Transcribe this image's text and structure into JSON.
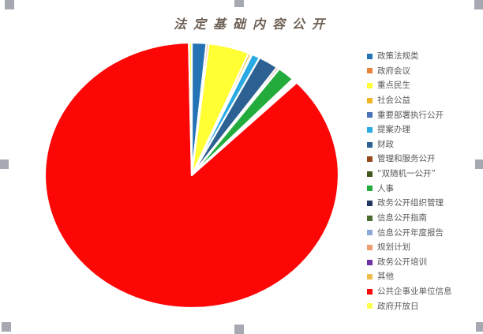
{
  "window": {
    "background": "#ffffff",
    "selection_handle_color": "#a6a9b2"
  },
  "chart_data": {
    "type": "pie",
    "title": "法定基础内容公开",
    "legend_position": "right",
    "start_angle_deg": 0,
    "direction": "clockwise",
    "grid": false,
    "title_color": "#6e6156",
    "legend_text_color": "#595959",
    "slice_border_color": "#ffffff",
    "categories": [
      "政策法规类",
      "政府会议",
      "重点民生",
      "社会公益",
      "重要部署执行公开",
      "提案办理",
      "财政",
      "管理和服务公开",
      "“双随机一公开”",
      "人事",
      "政务公开组织管理",
      "信息公开指南",
      "信息公开年度报告",
      "规划计划",
      "政务公开培训",
      "其他",
      "公共企事业单位信息",
      "政府开放日"
    ],
    "values_percent": [
      1.6,
      0.25,
      4.5,
      0.3,
      0.1,
      0.9,
      2.2,
      0.25,
      0.08,
      1.9,
      0.08,
      0.08,
      0.08,
      0.18,
      0.08,
      0.1,
      87.0,
      0.32
    ],
    "colors": [
      "#2573B5",
      "#E8823C",
      "#FFFF33",
      "#EFB41F",
      "#4A72B8",
      "#29AAE3",
      "#2D6093",
      "#99481E",
      "#41591D",
      "#23AC3C",
      "#1F3864",
      "#4C6B2F",
      "#8BA9D9",
      "#EC9D72",
      "#7233A2",
      "#EDBE4C",
      "#FC0606",
      "#FFFF4D"
    ]
  }
}
